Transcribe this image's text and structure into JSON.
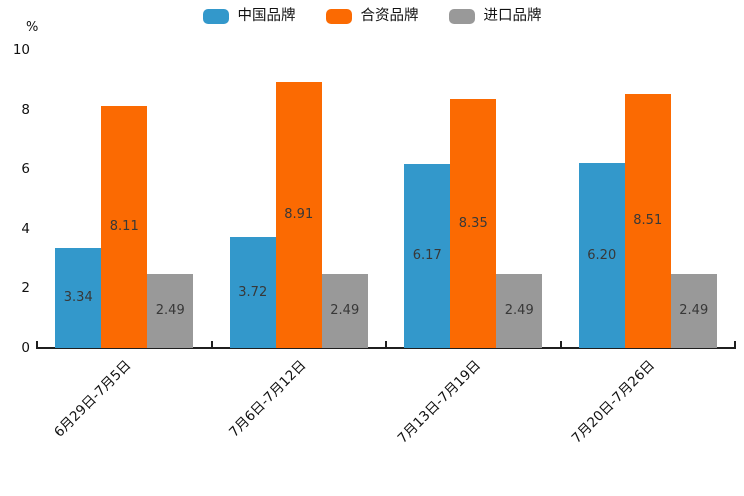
{
  "chart_data": {
    "type": "bar",
    "title": "",
    "unit_label": "%",
    "categories": [
      "6月29日-7月5日",
      "7月6日-7月12日",
      "7月13日-7月19日",
      "7月20日-7月26日"
    ],
    "series": [
      {
        "name": "中国品牌",
        "color": "#3398cb",
        "values": [
          3.34,
          3.72,
          6.17,
          6.2
        ]
      },
      {
        "name": "合资品牌",
        "color": "#fb6a02",
        "values": [
          8.11,
          8.91,
          8.35,
          8.51
        ]
      },
      {
        "name": "进口品牌",
        "color": "#999999",
        "values": [
          2.49,
          2.49,
          2.49,
          2.49
        ]
      }
    ],
    "value_label_format": "2-decimals",
    "yticks": [
      0,
      2,
      4,
      6,
      8,
      10
    ],
    "ylim": [
      0,
      10
    ],
    "legend_position": "top-center",
    "grid": false,
    "axis_color": "#1f1f1f"
  }
}
